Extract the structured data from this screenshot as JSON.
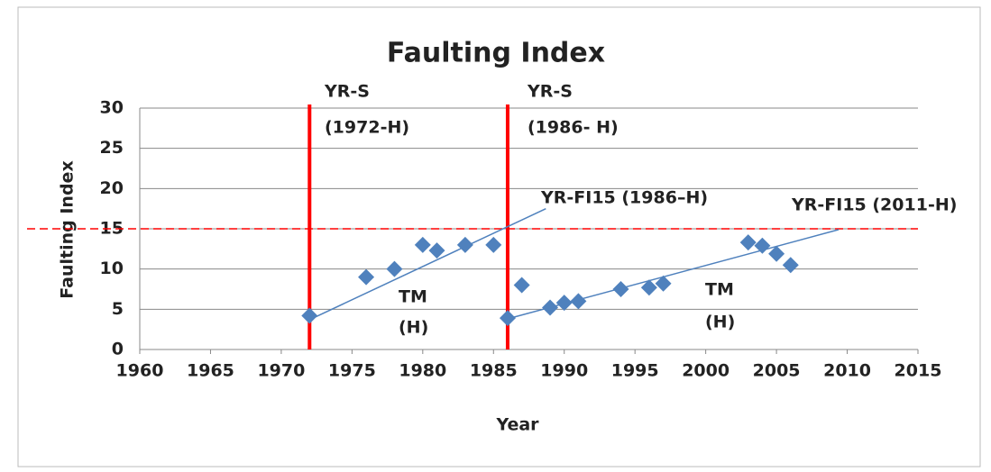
{
  "chart_data": {
    "type": "scatter",
    "title": "Faulting Index",
    "x_label": "Year",
    "y_label": "Faulting Index",
    "series": [
      {
        "color": "#4f81bd",
        "x": [
          1972,
          1976,
          1978,
          1980,
          1981,
          1983,
          1985,
          1986,
          1987,
          1989,
          1990,
          1991,
          1994,
          1996,
          1997,
          2003,
          2004,
          2005,
          2006
        ],
        "values": [
          4.2,
          9,
          10,
          13,
          12.3,
          13,
          13,
          3.9,
          8,
          5.2,
          5.8,
          6,
          7.5,
          7.7,
          8.2,
          13.3,
          12.9,
          11.9,
          10.5
        ]
      }
    ],
    "trendlines": [
      {
        "color": "#4f81bd",
        "x": [
          1972,
          1988.7
        ],
        "values": [
          3.7,
          17.5
        ]
      },
      {
        "color": "#4f81bd",
        "x": [
          1986.4,
          2009.4
        ],
        "values": [
          4,
          14.9
        ]
      }
    ],
    "vlines": [
      1972,
      1986
    ],
    "vline_color": "#ff0000",
    "hline": 15,
    "hline_color": "#ff0000",
    "annotations": [
      "YR-S",
      "(1972-H)",
      "YR-S",
      "(1986- H)",
      "YR-FI15 (1986–H)",
      "YR-FI15 (2011-H)",
      "TM",
      "(H)",
      "TM",
      "(H)"
    ],
    "xlim": [
      1960,
      2015
    ],
    "xticks": [
      1960,
      1965,
      1970,
      1975,
      1980,
      1985,
      1990,
      1995,
      2000,
      2005,
      2010,
      2015
    ],
    "ylim": [
      0,
      30
    ],
    "yticks": [
      0,
      5,
      10,
      15,
      20,
      25,
      30
    ],
    "grid": true
  }
}
